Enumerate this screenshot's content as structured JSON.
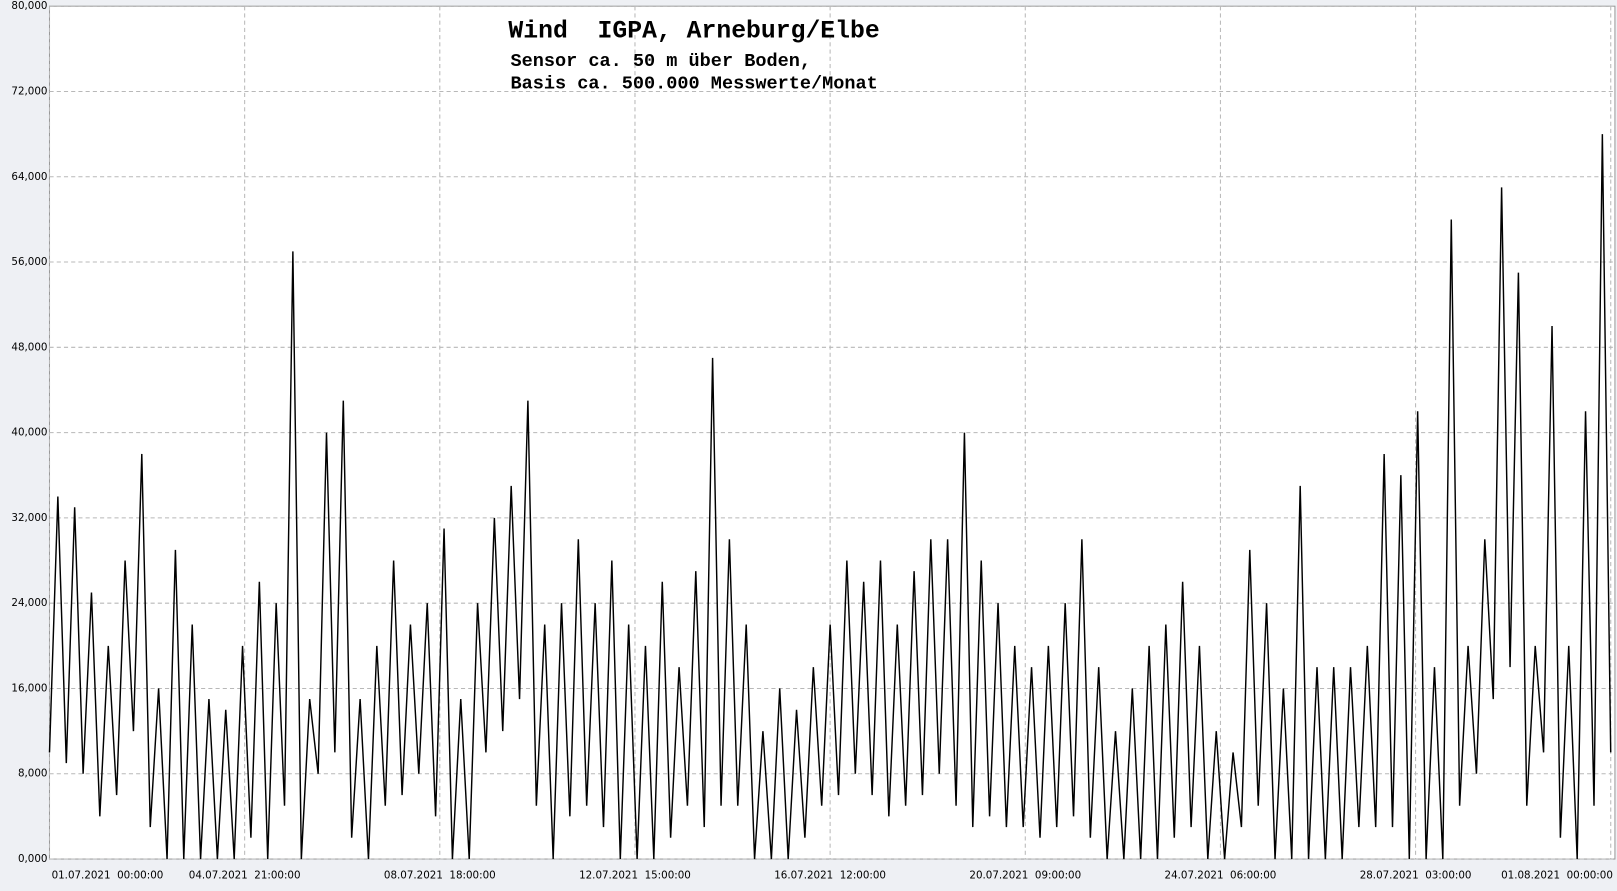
{
  "chart_data": {
    "type": "line",
    "title": "Wind  IGPA, Arneburg/Elbe",
    "subtitle": [
      "Sensor ca. 50 m über Boden,",
      "Basis ca. 500.000 Messwerte/Monat"
    ],
    "color": "#000000",
    "grid": true,
    "xlim": [
      0,
      746
    ],
    "xticks": [
      {
        "value": 0,
        "label": "01.07.2021  00:00:00"
      },
      {
        "value": 93,
        "label": "04.07.2021  21:00:00"
      },
      {
        "value": 186,
        "label": "08.07.2021  18:00:00"
      },
      {
        "value": 279,
        "label": "12.07.2021  15:00:00"
      },
      {
        "value": 372,
        "label": "16.07.2021  12:00:00"
      },
      {
        "value": 465,
        "label": "20.07.2021  09:00:00"
      },
      {
        "value": 558,
        "label": "24.07.2021  06:00:00"
      },
      {
        "value": 651,
        "label": "28.07.2021  03:00:00"
      },
      {
        "value": 744,
        "label": "01.08.2021  00:00:00"
      }
    ],
    "ylim": [
      0,
      80000
    ],
    "yticks": [
      {
        "value": 0,
        "label": "0,000"
      },
      {
        "value": 8000,
        "label": "8,000"
      },
      {
        "value": 16000,
        "label": "16,000"
      },
      {
        "value": 24000,
        "label": "24,000"
      },
      {
        "value": 32000,
        "label": "32,000"
      },
      {
        "value": 40000,
        "label": "40,000"
      },
      {
        "value": 48000,
        "label": "48,000"
      },
      {
        "value": 56000,
        "label": "56,000"
      },
      {
        "value": 64000,
        "label": "64,000"
      },
      {
        "value": 72000,
        "label": "72,000"
      },
      {
        "value": 80000,
        "label": "80,000"
      }
    ],
    "x": [
      0,
      4,
      8,
      12,
      16,
      20,
      24,
      28,
      32,
      36,
      40,
      44,
      48,
      52,
      56,
      60,
      64,
      68,
      72,
      76,
      80,
      84,
      88,
      92,
      96,
      100,
      104,
      108,
      112,
      116,
      120,
      124,
      128,
      132,
      136,
      140,
      144,
      148,
      152,
      156,
      160,
      164,
      168,
      172,
      176,
      180,
      184,
      188,
      192,
      196,
      200,
      204,
      208,
      212,
      216,
      220,
      224,
      228,
      232,
      236,
      240,
      244,
      248,
      252,
      256,
      260,
      264,
      268,
      272,
      276,
      280,
      284,
      288,
      292,
      296,
      300,
      304,
      308,
      312,
      316,
      320,
      324,
      328,
      332,
      336,
      340,
      344,
      348,
      352,
      356,
      360,
      364,
      368,
      372,
      376,
      380,
      384,
      388,
      392,
      396,
      400,
      404,
      408,
      412,
      416,
      420,
      424,
      428,
      432,
      436,
      440,
      444,
      448,
      452,
      456,
      460,
      464,
      468,
      472,
      476,
      480,
      484,
      488,
      492,
      496,
      500,
      504,
      508,
      512,
      516,
      520,
      524,
      528,
      532,
      536,
      540,
      544,
      548,
      552,
      556,
      560,
      564,
      568,
      572,
      576,
      580,
      584,
      588,
      592,
      596,
      600,
      604,
      608,
      612,
      616,
      620,
      624,
      628,
      632,
      636,
      640,
      644,
      648,
      652,
      656,
      660,
      664,
      668,
      672,
      676,
      680,
      684,
      688,
      692,
      696,
      700,
      704,
      708,
      712,
      716,
      720,
      724,
      728,
      732,
      736,
      740,
      744
    ],
    "values": [
      10000,
      34000,
      9000,
      33000,
      8000,
      25000,
      4000,
      20000,
      6000,
      28000,
      12000,
      38000,
      3000,
      16000,
      0,
      29000,
      0,
      22000,
      0,
      15000,
      0,
      14000,
      0,
      20000,
      2000,
      26000,
      0,
      24000,
      5000,
      57000,
      0,
      15000,
      8000,
      40000,
      10000,
      43000,
      2000,
      15000,
      0,
      20000,
      5000,
      28000,
      6000,
      22000,
      8000,
      24000,
      4000,
      31000,
      0,
      15000,
      0,
      24000,
      10000,
      32000,
      12000,
      35000,
      15000,
      43000,
      5000,
      22000,
      0,
      24000,
      4000,
      30000,
      5000,
      24000,
      3000,
      28000,
      0,
      22000,
      0,
      20000,
      0,
      26000,
      2000,
      18000,
      5000,
      27000,
      3000,
      47000,
      5000,
      30000,
      5000,
      22000,
      0,
      12000,
      0,
      16000,
      0,
      14000,
      2000,
      18000,
      5000,
      22000,
      6000,
      28000,
      8000,
      26000,
      6000,
      28000,
      4000,
      22000,
      5000,
      27000,
      6000,
      30000,
      8000,
      30000,
      5000,
      40000,
      3000,
      28000,
      4000,
      24000,
      3000,
      20000,
      3000,
      18000,
      2000,
      20000,
      3000,
      24000,
      4000,
      30000,
      2000,
      18000,
      0,
      12000,
      0,
      16000,
      0,
      20000,
      0,
      22000,
      2000,
      26000,
      3000,
      20000,
      0,
      12000,
      0,
      10000,
      3000,
      29000,
      5000,
      24000,
      0,
      16000,
      0,
      35000,
      0,
      18000,
      0,
      18000,
      0,
      18000,
      3000,
      20000,
      3000,
      38000,
      3000,
      36000,
      0,
      42000,
      0,
      18000,
      0,
      60000,
      5000,
      20000,
      8000,
      30000,
      15000,
      63000,
      18000,
      55000,
      5000,
      20000,
      10000,
      50000,
      2000,
      20000,
      0,
      42000,
      5000,
      68000,
      10000
    ]
  }
}
